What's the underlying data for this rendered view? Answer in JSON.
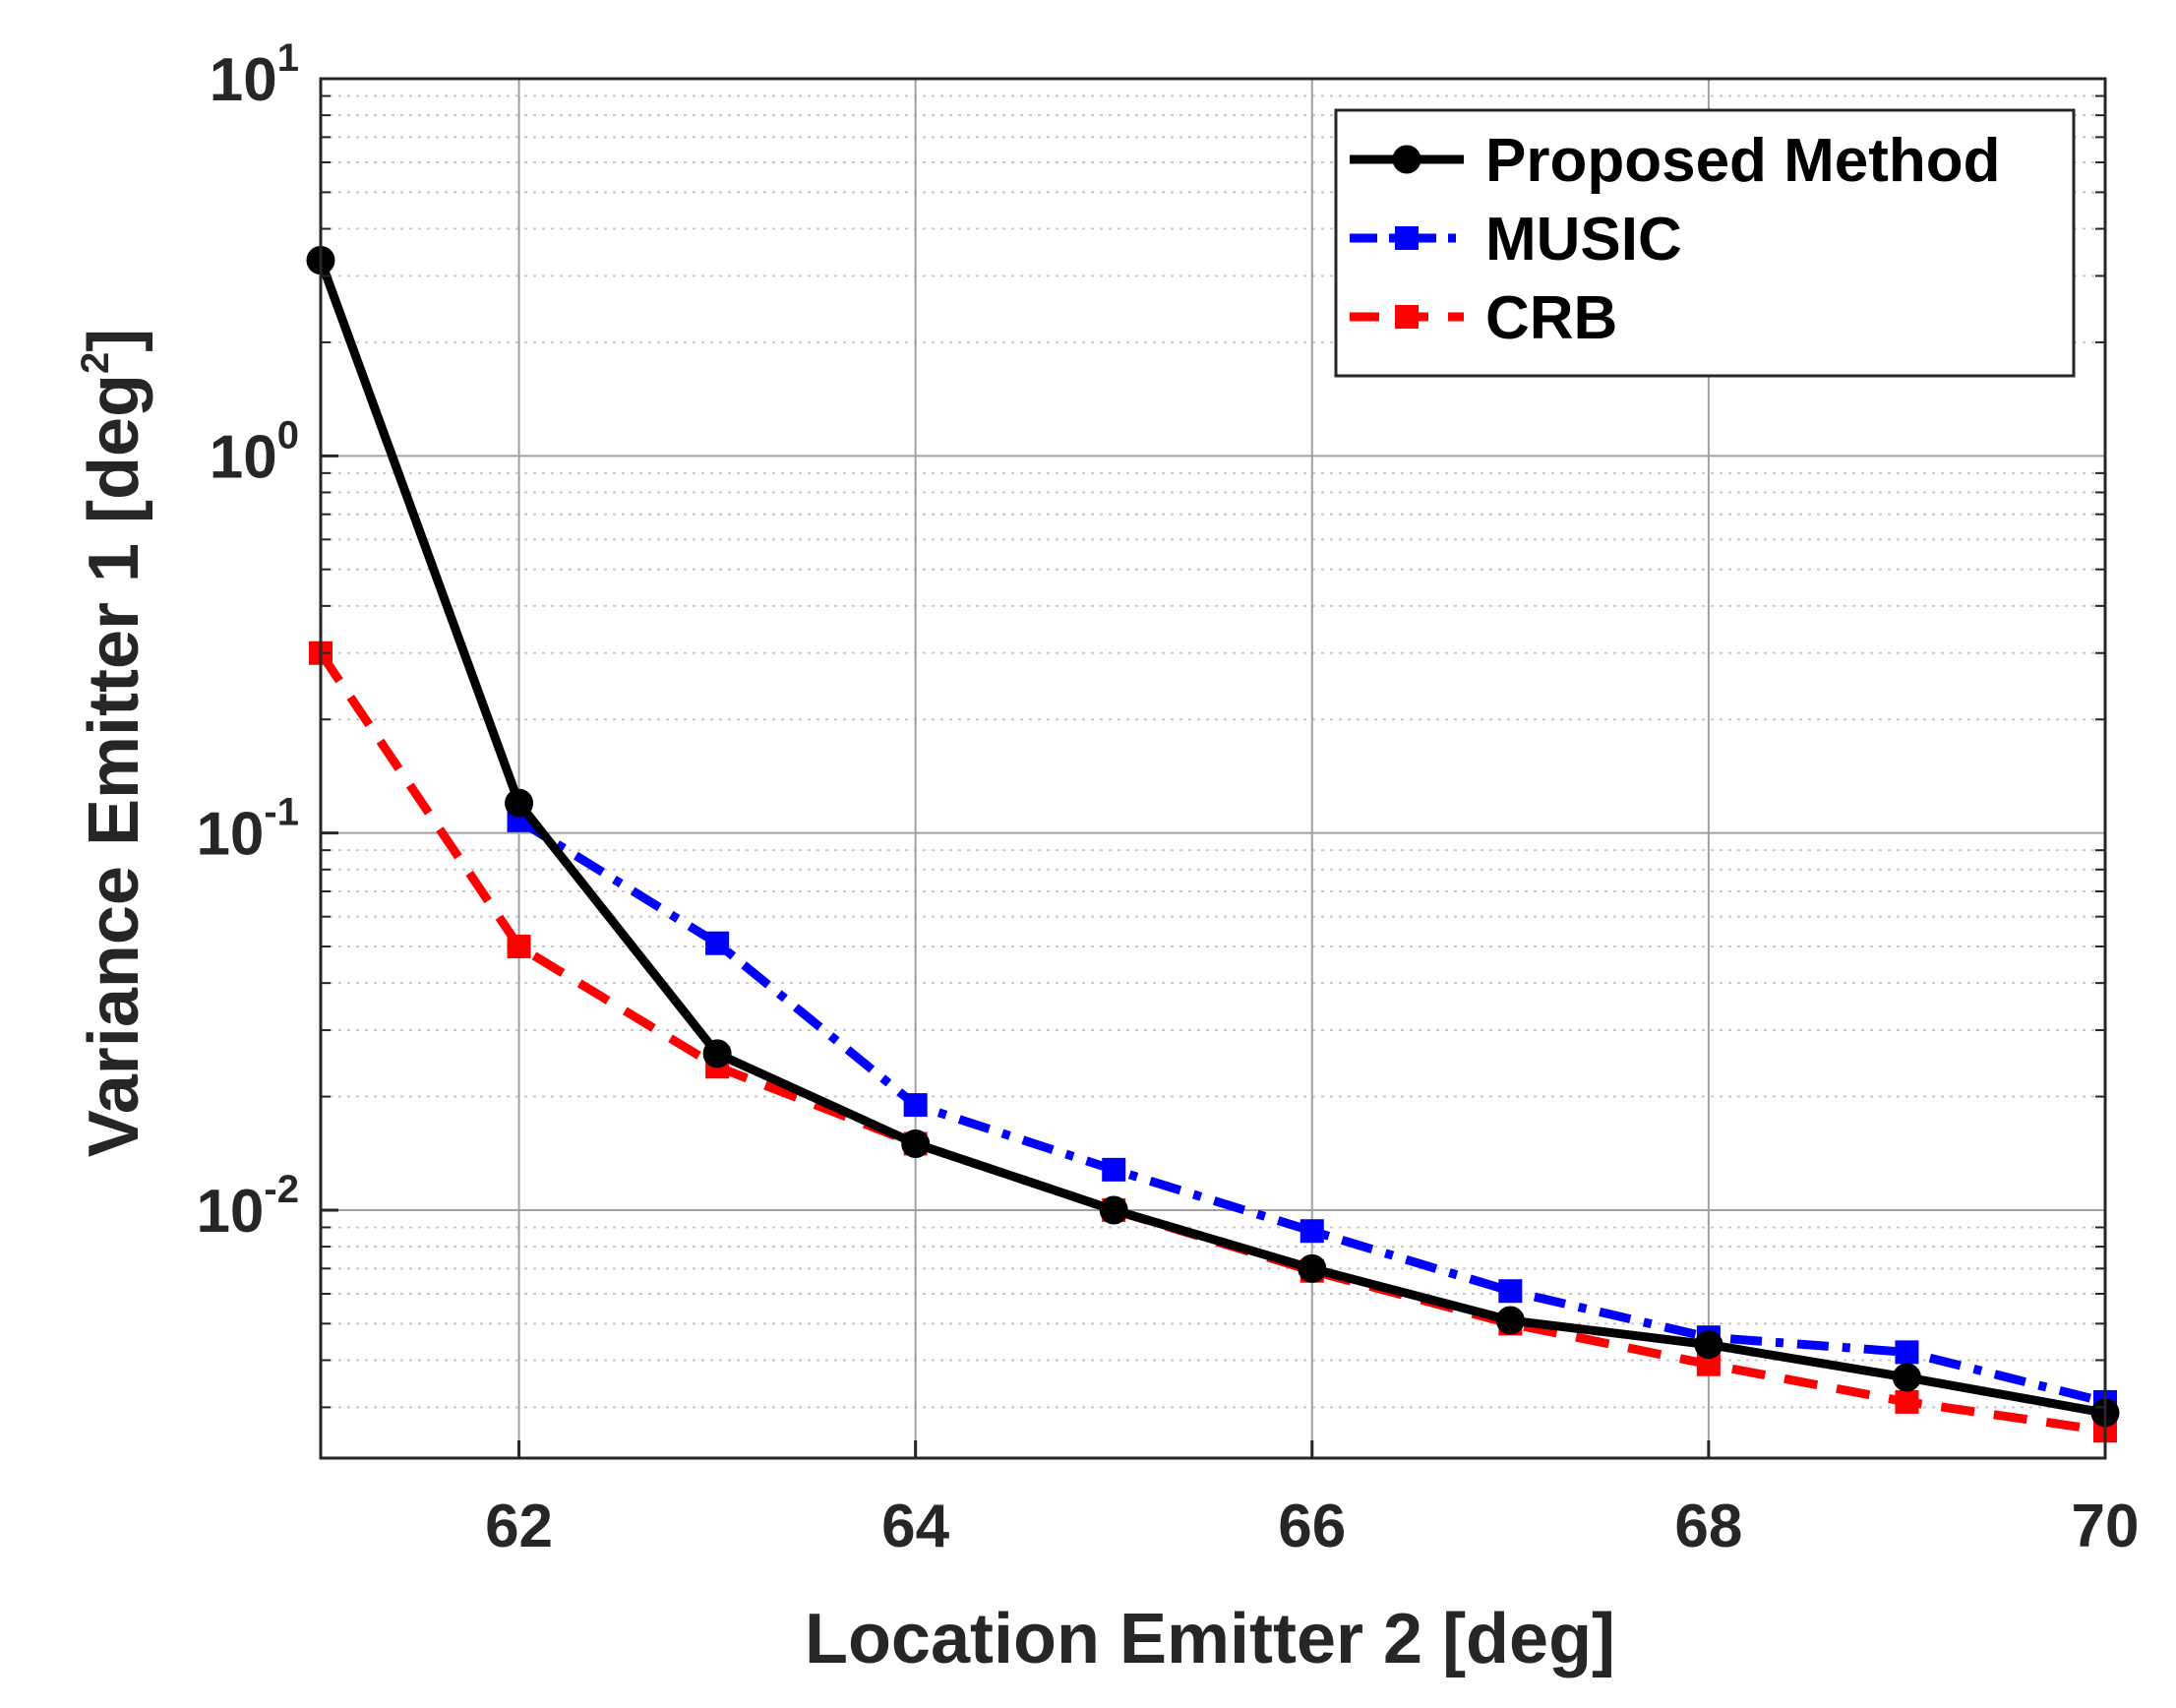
{
  "chart_data": {
    "type": "line",
    "y_scale": "log",
    "xlabel": "Location Emitter 2 [deg]",
    "ylabel": "Variance Emitter 1 [deg",
    "ylabel_superscript": "2",
    "ylabel_suffix": "]",
    "xlim": [
      61,
      70
    ],
    "ylim": [
      0.0022,
      10
    ],
    "x_ticks": [
      62,
      64,
      66,
      68,
      70
    ],
    "x_tick_labels": [
      "62",
      "64",
      "66",
      "68",
      "70"
    ],
    "y_ticks": [
      {
        "value": 10,
        "base": "10",
        "exp": "1"
      },
      {
        "value": 1,
        "base": "10",
        "exp": "0"
      },
      {
        "value": 0.1,
        "base": "10",
        "exp": "-1"
      },
      {
        "value": 0.01,
        "base": "10",
        "exp": "-2"
      }
    ],
    "grid": true,
    "legend_position": "top-right",
    "x": [
      61,
      62,
      63,
      64,
      65,
      66,
      67,
      68,
      69,
      70
    ],
    "series": [
      {
        "name": "Proposed Method",
        "color": "#000000",
        "line_style": "solid",
        "marker": "circle",
        "values": [
          3.3,
          0.12,
          0.026,
          0.015,
          0.01,
          0.007,
          0.0051,
          0.0044,
          0.0036,
          0.0029
        ]
      },
      {
        "name": "MUSIC",
        "color": "#0000ff",
        "line_style": "dashdot",
        "marker": "square",
        "values": [
          null,
          0.108,
          0.051,
          0.019,
          0.0128,
          0.0088,
          0.0061,
          0.0046,
          0.0042,
          0.0031
        ]
      },
      {
        "name": "CRB",
        "color": "#ff0000",
        "line_style": "dashed",
        "marker": "square",
        "values": [
          0.3,
          0.05,
          0.024,
          0.015,
          0.01,
          0.0069,
          0.005,
          0.0039,
          0.0031,
          0.0026
        ]
      }
    ]
  }
}
